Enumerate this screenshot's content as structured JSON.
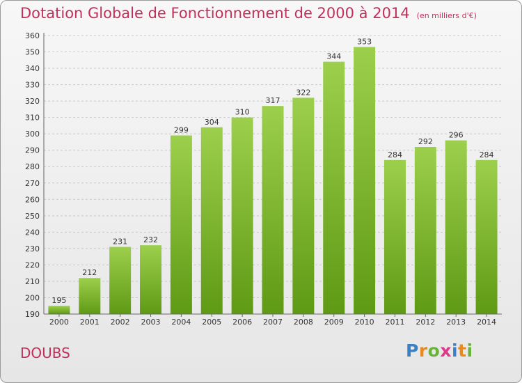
{
  "chart_data": {
    "type": "bar",
    "title": "Dotation Globale de Fonctionnement de 2000 à 2014",
    "unit": "(en milliers d'€)",
    "categories": [
      "2000",
      "2001",
      "2002",
      "2003",
      "2004",
      "2005",
      "2006",
      "2007",
      "2008",
      "2009",
      "2010",
      "2011",
      "2012",
      "2013",
      "2014"
    ],
    "values": [
      195,
      212,
      231,
      232,
      299,
      304,
      310,
      317,
      322,
      344,
      353,
      284,
      292,
      296,
      284
    ],
    "ylim": [
      190,
      360
    ],
    "ytick_step": 10,
    "grid": true,
    "bar_color_top": "#9ccf4c",
    "bar_color_bottom": "#5f9a15"
  },
  "footer": {
    "place": "DOUBS",
    "logo": "Proxiti",
    "logo_colors": [
      "#3b7fc4",
      "#e98a1f",
      "#6ab33b",
      "#e0398c",
      "#3b7fc4",
      "#e98a1f",
      "#6ab33b"
    ]
  }
}
